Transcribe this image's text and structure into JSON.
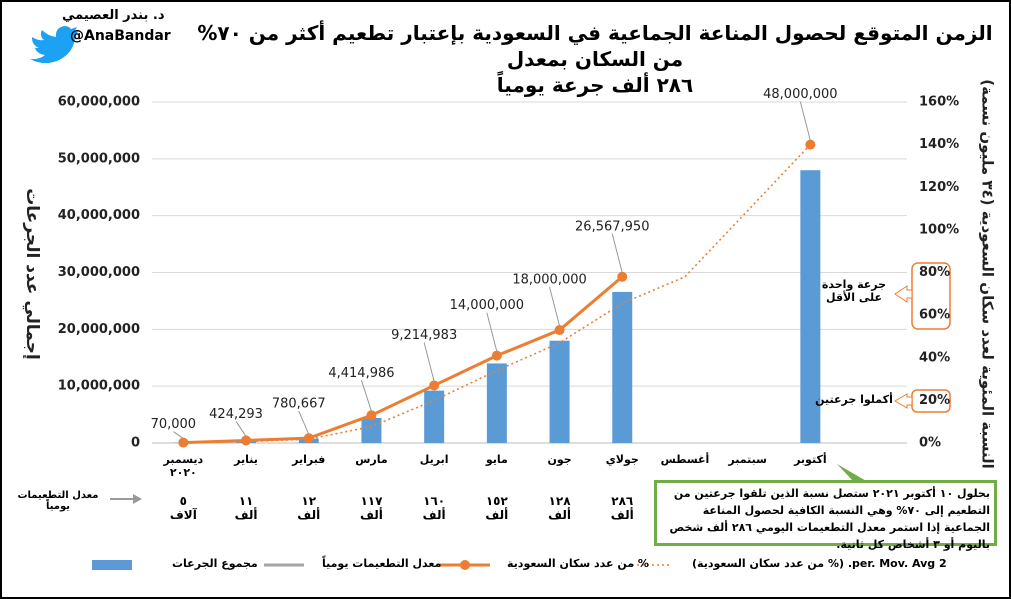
{
  "header": {
    "author": "د. بندر العصيمي",
    "handle": "@AnaBandar"
  },
  "chart_data": {
    "type": "combo",
    "title": "الزمن المتوقع لحصول المناعة الجماعية في السعودية بإعتبار تطعيم أكثر من ٧٠% من السكان بمعدل\n٢٨٦ ألف جرعة يومياً",
    "y_label": "إجمالي عدد الجرعات",
    "y2_label": "النسبة المئوية لعدد سكان السعودية (٣٤ مليون نسمة)",
    "categories": [
      "ديسمبر\n٢٠٢٠",
      "يناير",
      "فبراير",
      "مارس",
      "ابريل",
      "مايو",
      "جون",
      "جولاي",
      "أغسطس",
      "سبتمبر",
      "أكتوبر"
    ],
    "series": [
      {
        "name": "مجموع الجرعات",
        "type": "bar",
        "color": "#5b9bd5",
        "values": [
          70000,
          424293,
          780667,
          4414986,
          9214983,
          14000000,
          18000000,
          26567950,
          null,
          null,
          48000000
        ],
        "value_labels": [
          "70,000",
          "424,293",
          "780,667",
          "4,414,986",
          "9,214,983",
          "14,000,000",
          "18,000,000",
          "26,567,950",
          null,
          null,
          "48,000,000"
        ]
      },
      {
        "name": "معدل التطعيمات يومياً",
        "type": "table",
        "color": "#a5a5a5",
        "values": [
          5000,
          11000,
          12000,
          117000,
          160000,
          152000,
          128000,
          286000,
          null,
          null,
          null
        ],
        "value_labels": [
          "٥\nآلاف",
          "١١\nألف",
          "١٢\nألف",
          "١١٧\nألف",
          "١٦٠\nألف",
          "١٥٢\nألف",
          "١٢٨\nألف",
          "٢٨٦\nألف",
          null,
          null,
          null
        ]
      },
      {
        "name": "% من عدد سكان السعودية",
        "type": "line",
        "axis": "y2",
        "color": "#ed7d31",
        "values": [
          0.2,
          1.2,
          2.3,
          13,
          27,
          41,
          53,
          78,
          null,
          null,
          140
        ]
      },
      {
        "name": "2 per. Mov. Avg. (% من عدد سكان السعودية)",
        "type": "trend",
        "axis": "y2",
        "color": "#ed7d31",
        "values": [
          null,
          0.7,
          1.8,
          7.7,
          20,
          34,
          47,
          65.5,
          78,
          109,
          140
        ]
      }
    ],
    "ylim": [
      0,
      60000000
    ],
    "yticks": [
      0,
      {
        "value": 10000000,
        "label": "10,000,000"
      },
      {
        "value": 20000000,
        "label": "20,000,000"
      },
      {
        "value": 30000000,
        "label": "30,000,000"
      },
      {
        "value": 40000000,
        "label": "40,000,000"
      },
      {
        "value": 50000000,
        "label": "50,000,000"
      },
      {
        "value": 60000000,
        "label": "60,000,000"
      }
    ],
    "y2lim": [
      0,
      160
    ],
    "y2ticks": [
      {
        "value": 0,
        "label": "0%"
      },
      {
        "value": 20,
        "label": "20%"
      },
      {
        "value": 40,
        "label": "40%"
      },
      {
        "value": 60,
        "label": "60%"
      },
      {
        "value": 80,
        "label": "80%"
      },
      {
        "value": 100,
        "label": "100%"
      },
      {
        "value": 120,
        "label": "120%"
      },
      {
        "value": 140,
        "label": "140%"
      },
      {
        "value": 160,
        "label": "160%"
      }
    ],
    "annotations": [
      "جرعة واحدة\nعلى الأقل",
      "أكملوا جرعتين",
      "بحلول ١٠ أكتوبر ٢٠٢١ ستصل نسبة الذين تلقوا جرعتين من التطعيم إلى ٧٠% وهي النسبة الكافية لحصول المناعة الجماعية إذا استمر معدل التطعيمات اليومي ٢٨٦ ألف شخص باليوم أو ٣ أشخاص كل ثانية."
    ],
    "grid": true
  }
}
